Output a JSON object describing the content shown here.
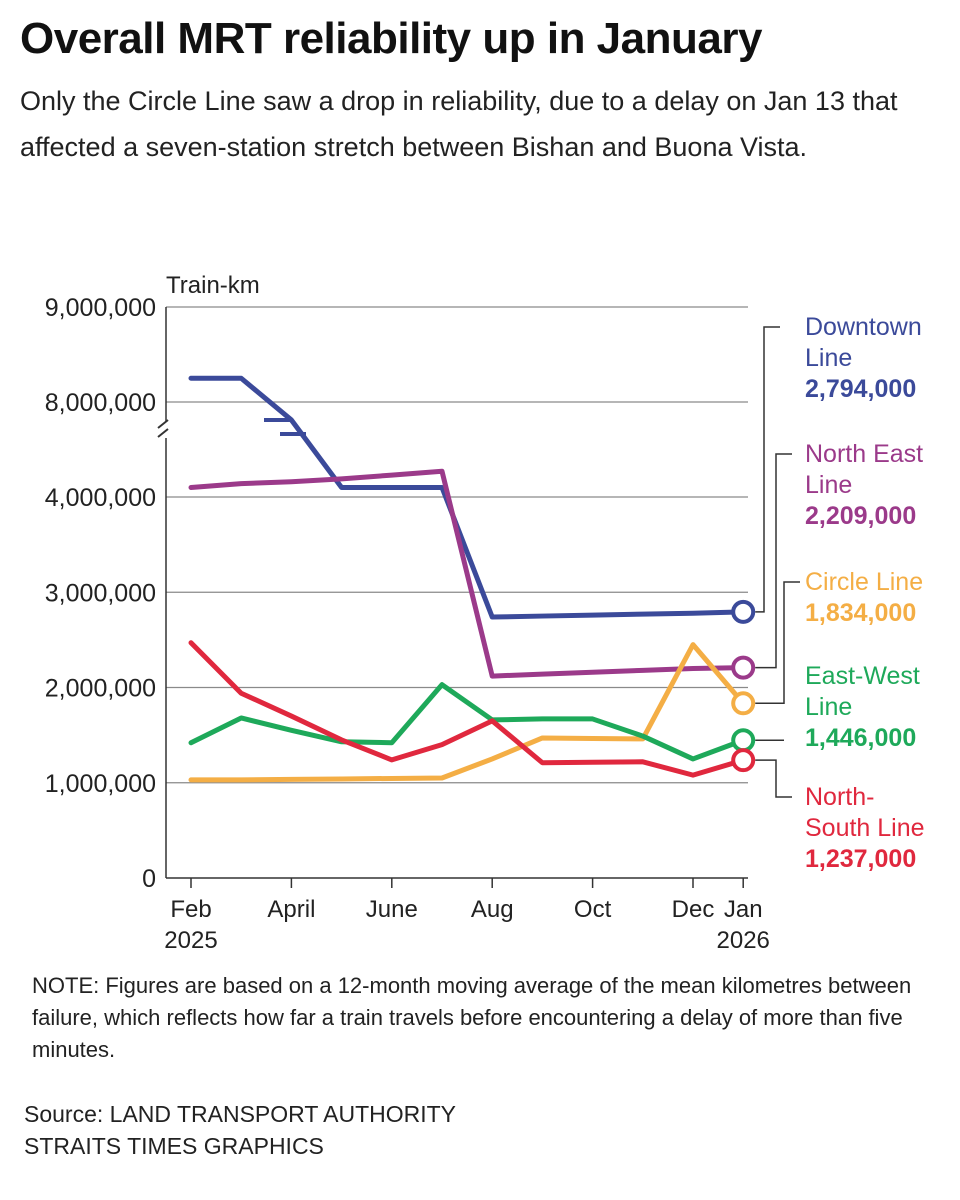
{
  "title": "Overall MRT reliability up in January",
  "subtitle": "Only the Circle Line saw a drop in reliability, due to a delay on Jan 13 that affected a seven-station stretch between Bishan and Buona Vista.",
  "note": "NOTE: Figures are based on a 12-month moving average of the mean kilometres between failure, which reflects how far a train travels before encountering a delay of more than five minutes.",
  "source": {
    "line1": "Source: LAND TRANSPORT AUTHORITY",
    "line2": "STRAITS TIMES GRAPHICS"
  },
  "chart_data": {
    "type": "line",
    "title": "Overall MRT reliability up in January",
    "ylabel": "Train-km",
    "xlabel": "",
    "ylim": [
      0,
      9000000
    ],
    "y_scale": "broken axis: 0 to 4,000,000 linear, break, 8,000,000 to 9,000,000",
    "grid": "horizontal",
    "y_ticks": [
      "9,000,000",
      "8,000,000",
      "4,000,000",
      "3,000,000",
      "2,000,000",
      "1,000,000",
      "0"
    ],
    "x_ticks": [
      {
        "month": 0,
        "line1": "Feb",
        "line2": "2025"
      },
      {
        "month": 2,
        "line1": "April",
        "line2": ""
      },
      {
        "month": 4,
        "line1": "June",
        "line2": ""
      },
      {
        "month": 6,
        "line1": "Aug",
        "line2": ""
      },
      {
        "month": 8,
        "line1": "Oct",
        "line2": ""
      },
      {
        "month": 10,
        "line1": "Dec",
        "line2": ""
      },
      {
        "month": 11,
        "line1": "Jan",
        "line2": "2026"
      }
    ],
    "x": [
      "Feb 2025",
      "Mar 2025",
      "Apr 2025",
      "May 2025",
      "Jun 2025",
      "Jul 2025",
      "Aug 2025",
      "Sep 2025",
      "Oct 2025",
      "Nov 2025",
      "Dec 2025",
      "Jan 2026"
    ],
    "series": [
      {
        "name": "Downtown Line",
        "label_lines": [
          "Downtown",
          "Line"
        ],
        "value_label": "2,794,000",
        "color": "#3b4a9a",
        "values": [
          8250000,
          8250000,
          7000000,
          4100000,
          4100000,
          4100000,
          2740000,
          2750000,
          2760000,
          2770000,
          2780000,
          2794000
        ]
      },
      {
        "name": "North East Line",
        "label_lines": [
          "North East",
          "Line"
        ],
        "value_label": "2,209,000",
        "color": "#9b3a8a",
        "values": [
          4100000,
          4140000,
          4160000,
          4190000,
          4230000,
          4270000,
          2120000,
          2140000,
          2160000,
          2180000,
          2200000,
          2209000
        ]
      },
      {
        "name": "Circle Line",
        "label_lines": [
          "Circle Line"
        ],
        "value_label": "1,834,000",
        "color": "#f4ae45",
        "values": [
          1030000,
          1030000,
          1035000,
          1040000,
          1045000,
          1050000,
          1250000,
          1470000,
          1465000,
          1460000,
          2450000,
          1834000
        ]
      },
      {
        "name": "East-West Line",
        "label_lines": [
          "East-West",
          "Line"
        ],
        "value_label": "1,446,000",
        "color": "#1ea95a",
        "values": [
          1420000,
          1680000,
          1550000,
          1430000,
          1420000,
          2030000,
          1660000,
          1670000,
          1670000,
          1490000,
          1250000,
          1446000
        ]
      },
      {
        "name": "North-South Line",
        "label_lines": [
          "North-",
          "South Line"
        ],
        "value_label": "1,237,000",
        "color": "#e0283e",
        "values": [
          2470000,
          1940000,
          1700000,
          1450000,
          1240000,
          1400000,
          1650000,
          1210000,
          1215000,
          1220000,
          1080000,
          1237000
        ]
      }
    ]
  }
}
